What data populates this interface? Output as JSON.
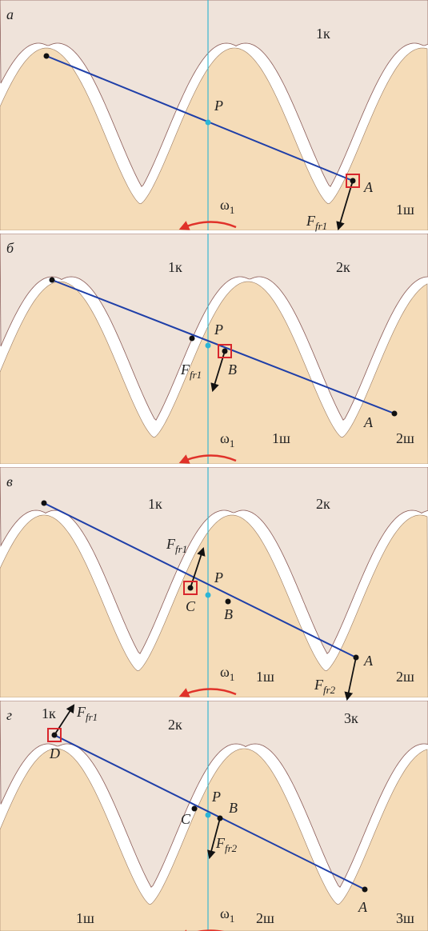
{
  "panels": [
    {
      "letter": "а",
      "labels": [
        "1к",
        "P",
        "A",
        "1ш"
      ],
      "omega": {
        "base": "ω",
        "sub": "1"
      },
      "forces": [
        {
          "base": "F",
          "sub": "fr1"
        }
      ]
    },
    {
      "letter": "б",
      "labels": [
        "1к",
        "2к",
        "P",
        "B",
        "A",
        "1ш",
        "2ш"
      ],
      "omega": {
        "base": "ω",
        "sub": "1"
      },
      "forces": [
        {
          "base": "F",
          "sub": "fr1"
        }
      ]
    },
    {
      "letter": "в",
      "labels": [
        "1к",
        "2к",
        "P",
        "C",
        "B",
        "A",
        "1ш",
        "2ш"
      ],
      "omega": {
        "base": "ω",
        "sub": "1"
      },
      "forces": [
        {
          "base": "F",
          "sub": "fr1"
        },
        {
          "base": "F",
          "sub": "fr2"
        }
      ]
    },
    {
      "letter": "г",
      "labels": [
        "1к",
        "2к",
        "3к",
        "D",
        "P",
        "C",
        "B",
        "A",
        "1ш",
        "2ш",
        "3ш"
      ],
      "omega": {
        "base": "ω",
        "sub": "1"
      },
      "forces": [
        {
          "base": "F",
          "sub": "fr1"
        },
        {
          "base": "F",
          "sub": "fr2"
        }
      ]
    }
  ]
}
